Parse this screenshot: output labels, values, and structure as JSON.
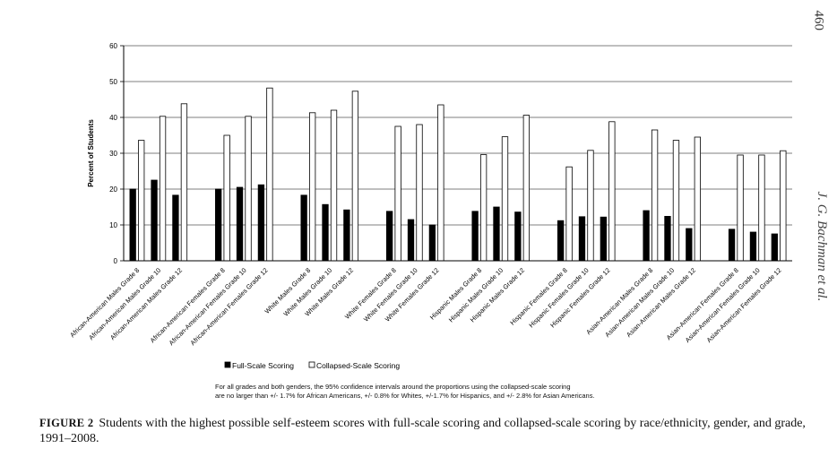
{
  "page_number": "460",
  "running_head": "J. G. Bachman et al.",
  "figure": {
    "label": "FIGURE 2",
    "caption": "Students with the highest possible self-esteem scores with full-scale scoring and collapsed-scale scoring by race/ethnicity, gender, and grade, 1991–2008."
  },
  "note": {
    "line1": "For all grades and both genders, the 95% confidence intervals around the proportions using the collapsed-scale scoring",
    "line2": "are no larger than +/- 1.7% for African Americans, +/- 0.8% for Whites,  +/-1.7% for Hispanics, and  +/- 2.8% for Asian Americans."
  },
  "colors": {
    "full": "#000000",
    "collapsed": "#ffffff",
    "axis": "#000000",
    "grid": "#555555"
  },
  "chart_data": {
    "type": "bar",
    "title": "",
    "xlabel": "",
    "ylabel": "Percent of Students",
    "ylim": [
      0,
      60
    ],
    "yticks": [
      0,
      10,
      20,
      30,
      40,
      50,
      60
    ],
    "grid": true,
    "legend_position": "bottom",
    "series": [
      {
        "name": "Full-Scale Scoring",
        "values": [
          20,
          22.5,
          18.3,
          20,
          20.5,
          21.2,
          18.3,
          15.7,
          14.2,
          13.8,
          11.5,
          10,
          13.8,
          15,
          13.6,
          11.2,
          12.3,
          12.2,
          14,
          12.4,
          9,
          8.8,
          8,
          7.5
        ]
      },
      {
        "name": "Collapsed-Scale Scoring",
        "values": [
          33.6,
          40.3,
          43.8,
          35,
          40.3,
          48.2,
          41.3,
          42,
          47.3,
          37.5,
          38,
          43.5,
          29.6,
          34.6,
          40.6,
          26.2,
          30.8,
          38.8,
          36.5,
          33.6,
          34.5,
          29.5,
          29.5,
          30.7
        ]
      }
    ],
    "categories": [
      "African-American Males Grade 8",
      "African-American Males Grade 10",
      "African-American Males Grade 12",
      "African-American Females Grade 8",
      "African-American Females Grade 10",
      "African-American Females Grade 12",
      "White Males Grade 8",
      "White Males Grade 10",
      "White Males Grade 12",
      "White Females Grade 8",
      "White Females Grade 10",
      "White Females Grade 12",
      "Hispanic Males Grade 8",
      "Hispanic Males Grade 10",
      "Hispanic Males Grade 12",
      "Hispanic Females Grade 8",
      "Hispanic Females Grade 10",
      "Hispanic Females Grade 12",
      "Asian-American Males Grade 8",
      "Asian-American Males Grade 10",
      "Asian-American Males Grade 12",
      "Asian-American Females Grade 8",
      "Asian-American Females Grade 10",
      "Asian-American Females Grade 12"
    ],
    "groups": 8,
    "per_group": 3
  }
}
